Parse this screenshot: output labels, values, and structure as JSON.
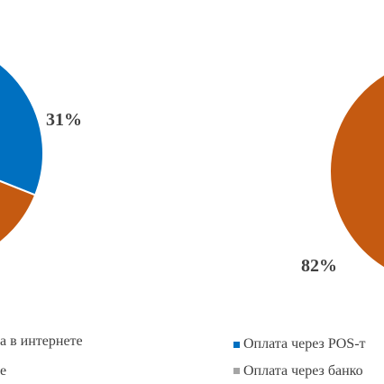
{
  "chart_data": [
    {
      "type": "pie",
      "series": [
        {
          "name": "",
          "values": [
            31,
            69
          ]
        }
      ],
      "slices": [
        {
          "label": "",
          "value": 31,
          "display": "31%",
          "color": "#0070c0"
        },
        {
          "label": "",
          "value": 69,
          "display": "",
          "color": "#c55a11"
        }
      ],
      "legend": [
        {
          "text": "а в интернете",
          "color": "#0070c0"
        },
        {
          "text": "е",
          "color": "#a5a5a5"
        }
      ],
      "legend_placement": "bottom"
    },
    {
      "type": "pie",
      "series": [
        {
          "name": "",
          "values": [
            82,
            18
          ]
        }
      ],
      "slices": [
        {
          "label": "Оплата через POS-т",
          "value": 82,
          "display": "82%",
          "color": "#c55a11"
        },
        {
          "label": "Оплата через банко",
          "value": 18,
          "display": "",
          "color": "#a5a5a5"
        }
      ],
      "legend": [
        {
          "text": "Оплата через POS-т",
          "color": "#0070c0"
        },
        {
          "text": "Оплата через банко",
          "color": "#a5a5a5"
        }
      ],
      "legend_placement": "bottom"
    }
  ]
}
